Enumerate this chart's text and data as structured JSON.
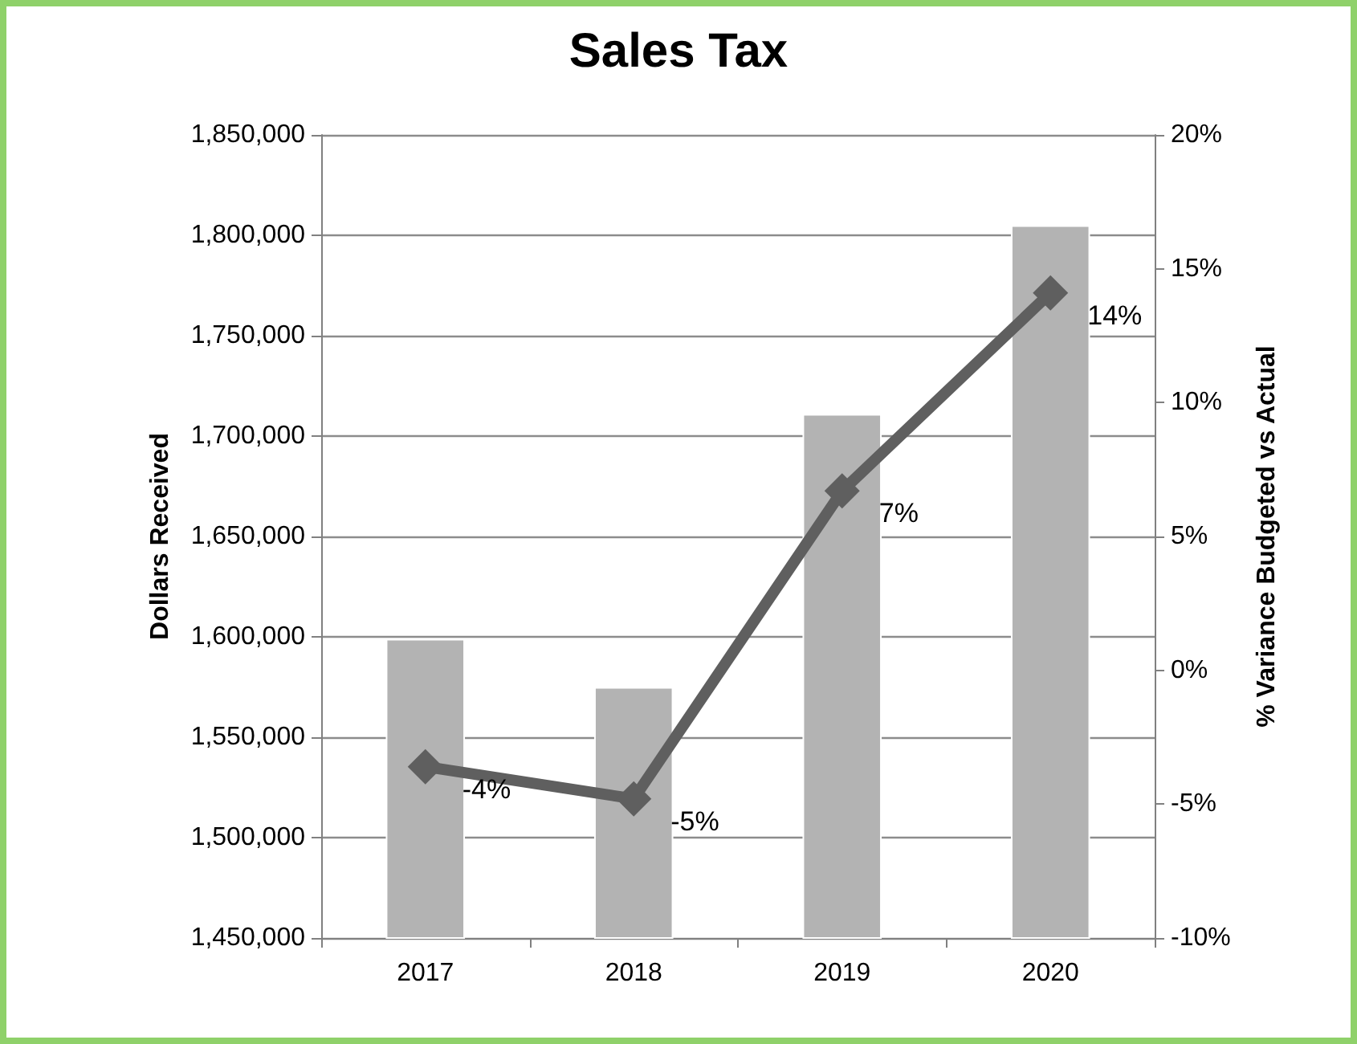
{
  "chart_data": {
    "type": "bar",
    "title": "Sales Tax",
    "categories": [
      "2017",
      "2018",
      "2019",
      "2020"
    ],
    "series": [
      {
        "color": "#b3b3b3",
        "values": [
          1599000,
          1575000,
          1711000,
          1805000
        ]
      },
      {
        "type": "line",
        "axis": "y2",
        "color": "#5f5f5f",
        "values": [
          -3.6,
          -4.8,
          6.7,
          14.1
        ],
        "value_labels": [
          "-4%",
          "-5%",
          "7%",
          "14%"
        ]
      }
    ],
    "ylabel": "Dollars Received",
    "y2label": "% Variance Budgeted vs Actual",
    "ylim": [
      1450000,
      1850000
    ],
    "yticks": [
      {
        "value": 1450000,
        "label": "1,450,000"
      },
      {
        "value": 1500000,
        "label": "1,500,000"
      },
      {
        "value": 1550000,
        "label": "1,550,000"
      },
      {
        "value": 1600000,
        "label": "1,600,000"
      },
      {
        "value": 1650000,
        "label": "1,650,000"
      },
      {
        "value": 1700000,
        "label": "1,700,000"
      },
      {
        "value": 1750000,
        "label": "1,750,000"
      },
      {
        "value": 1800000,
        "label": "1,800,000"
      },
      {
        "value": 1850000,
        "label": "1,850,000"
      }
    ],
    "y2lim": [
      -10,
      20
    ],
    "y2ticks": [
      {
        "value": -10,
        "label": "-10%"
      },
      {
        "value": -5,
        "label": "-5%"
      },
      {
        "value": 0,
        "label": "0%"
      },
      {
        "value": 5,
        "label": "5%"
      },
      {
        "value": 10,
        "label": "10%"
      },
      {
        "value": 15,
        "label": "15%"
      },
      {
        "value": 20,
        "label": "20%"
      }
    ],
    "grid": "y",
    "marker": "diamond",
    "line_style": "solid"
  }
}
